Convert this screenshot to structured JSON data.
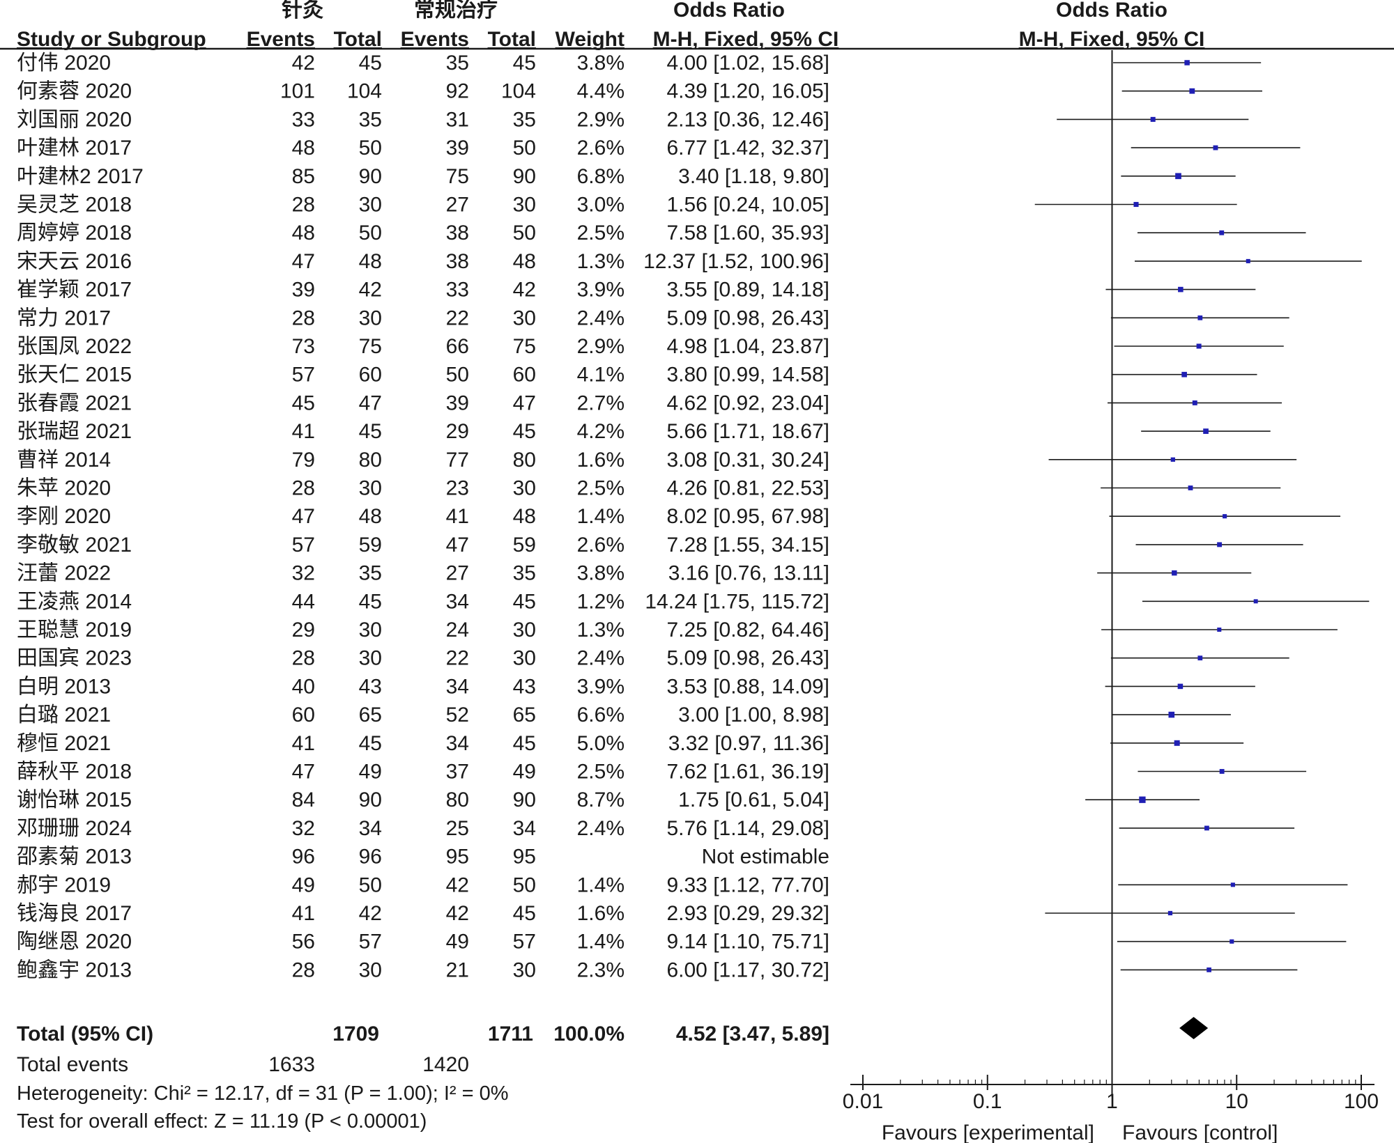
{
  "chart_data": {
    "type": "forest",
    "title": "Odds Ratio",
    "method": "M-H, Fixed, 95% CI",
    "experimental_group": "针灸",
    "control_group": "常规治疗",
    "headers": {
      "study": "Study or Subgroup",
      "events": "Events",
      "total": "Total",
      "weight": "Weight",
      "or_title": "Odds Ratio",
      "or_method": "M-H, Fixed, 95% CI"
    },
    "studies": [
      {
        "name": "付伟 2020",
        "e_events": "42",
        "e_total": "45",
        "c_events": "35",
        "c_total": "45",
        "weight": "3.8%",
        "ci_text": "4.00 [1.02, 15.68]",
        "or": 4.0,
        "lo": 1.02,
        "hi": 15.68,
        "w": 3.8
      },
      {
        "name": "何素蓉 2020",
        "e_events": "101",
        "e_total": "104",
        "c_events": "92",
        "c_total": "104",
        "weight": "4.4%",
        "ci_text": "4.39 [1.20, 16.05]",
        "or": 4.39,
        "lo": 1.2,
        "hi": 16.05,
        "w": 4.4
      },
      {
        "name": "刘国丽 2020",
        "e_events": "33",
        "e_total": "35",
        "c_events": "31",
        "c_total": "35",
        "weight": "2.9%",
        "ci_text": "2.13 [0.36, 12.46]",
        "or": 2.13,
        "lo": 0.36,
        "hi": 12.46,
        "w": 2.9
      },
      {
        "name": "叶建林 2017",
        "e_events": "48",
        "e_total": "50",
        "c_events": "39",
        "c_total": "50",
        "weight": "2.6%",
        "ci_text": "6.77 [1.42, 32.37]",
        "or": 6.77,
        "lo": 1.42,
        "hi": 32.37,
        "w": 2.6
      },
      {
        "name": "叶建林2 2017",
        "e_events": "85",
        "e_total": "90",
        "c_events": "75",
        "c_total": "90",
        "weight": "6.8%",
        "ci_text": "3.40 [1.18, 9.80]",
        "or": 3.4,
        "lo": 1.18,
        "hi": 9.8,
        "w": 6.8
      },
      {
        "name": "吴灵芝 2018",
        "e_events": "28",
        "e_total": "30",
        "c_events": "27",
        "c_total": "30",
        "weight": "3.0%",
        "ci_text": "1.56 [0.24, 10.05]",
        "or": 1.56,
        "lo": 0.24,
        "hi": 10.05,
        "w": 3.0
      },
      {
        "name": "周婷婷 2018",
        "e_events": "48",
        "e_total": "50",
        "c_events": "38",
        "c_total": "50",
        "weight": "2.5%",
        "ci_text": "7.58 [1.60, 35.93]",
        "or": 7.58,
        "lo": 1.6,
        "hi": 35.93,
        "w": 2.5
      },
      {
        "name": "宋天云 2016",
        "e_events": "47",
        "e_total": "48",
        "c_events": "38",
        "c_total": "48",
        "weight": "1.3%",
        "ci_text": "12.37 [1.52, 100.96]",
        "or": 12.37,
        "lo": 1.52,
        "hi": 100.96,
        "w": 1.3
      },
      {
        "name": "崔学颖 2017",
        "e_events": "39",
        "e_total": "42",
        "c_events": "33",
        "c_total": "42",
        "weight": "3.9%",
        "ci_text": "3.55 [0.89, 14.18]",
        "or": 3.55,
        "lo": 0.89,
        "hi": 14.18,
        "w": 3.9
      },
      {
        "name": "常力 2017",
        "e_events": "28",
        "e_total": "30",
        "c_events": "22",
        "c_total": "30",
        "weight": "2.4%",
        "ci_text": "5.09 [0.98, 26.43]",
        "or": 5.09,
        "lo": 0.98,
        "hi": 26.43,
        "w": 2.4
      },
      {
        "name": "张国凤 2022",
        "e_events": "73",
        "e_total": "75",
        "c_events": "66",
        "c_total": "75",
        "weight": "2.9%",
        "ci_text": "4.98 [1.04, 23.87]",
        "or": 4.98,
        "lo": 1.04,
        "hi": 23.87,
        "w": 2.9
      },
      {
        "name": "张天仁 2015",
        "e_events": "57",
        "e_total": "60",
        "c_events": "50",
        "c_total": "60",
        "weight": "4.1%",
        "ci_text": "3.80 [0.99, 14.58]",
        "or": 3.8,
        "lo": 0.99,
        "hi": 14.58,
        "w": 4.1
      },
      {
        "name": "张春霞 2021",
        "e_events": "45",
        "e_total": "47",
        "c_events": "39",
        "c_total": "47",
        "weight": "2.7%",
        "ci_text": "4.62 [0.92, 23.04]",
        "or": 4.62,
        "lo": 0.92,
        "hi": 23.04,
        "w": 2.7
      },
      {
        "name": "张瑞超 2021",
        "e_events": "41",
        "e_total": "45",
        "c_events": "29",
        "c_total": "45",
        "weight": "4.2%",
        "ci_text": "5.66 [1.71, 18.67]",
        "or": 5.66,
        "lo": 1.71,
        "hi": 18.67,
        "w": 4.2
      },
      {
        "name": "曹祥 2014",
        "e_events": "79",
        "e_total": "80",
        "c_events": "77",
        "c_total": "80",
        "weight": "1.6%",
        "ci_text": "3.08 [0.31, 30.24]",
        "or": 3.08,
        "lo": 0.31,
        "hi": 30.24,
        "w": 1.6
      },
      {
        "name": "朱苹 2020",
        "e_events": "28",
        "e_total": "30",
        "c_events": "23",
        "c_total": "30",
        "weight": "2.5%",
        "ci_text": "4.26 [0.81, 22.53]",
        "or": 4.26,
        "lo": 0.81,
        "hi": 22.53,
        "w": 2.5
      },
      {
        "name": "李刚 2020",
        "e_events": "47",
        "e_total": "48",
        "c_events": "41",
        "c_total": "48",
        "weight": "1.4%",
        "ci_text": "8.02 [0.95, 67.98]",
        "or": 8.02,
        "lo": 0.95,
        "hi": 67.98,
        "w": 1.4
      },
      {
        "name": "李敬敏 2021",
        "e_events": "57",
        "e_total": "59",
        "c_events": "47",
        "c_total": "59",
        "weight": "2.6%",
        "ci_text": "7.28 [1.55, 34.15]",
        "or": 7.28,
        "lo": 1.55,
        "hi": 34.15,
        "w": 2.6
      },
      {
        "name": "汪蕾 2022",
        "e_events": "32",
        "e_total": "35",
        "c_events": "27",
        "c_total": "35",
        "weight": "3.8%",
        "ci_text": "3.16 [0.76, 13.11]",
        "or": 3.16,
        "lo": 0.76,
        "hi": 13.11,
        "w": 3.8
      },
      {
        "name": "王凌燕 2014",
        "e_events": "44",
        "e_total": "45",
        "c_events": "34",
        "c_total": "45",
        "weight": "1.2%",
        "ci_text": "14.24 [1.75, 115.72]",
        "or": 14.24,
        "lo": 1.75,
        "hi": 115.72,
        "w": 1.2
      },
      {
        "name": "王聪慧 2019",
        "e_events": "29",
        "e_total": "30",
        "c_events": "24",
        "c_total": "30",
        "weight": "1.3%",
        "ci_text": "7.25 [0.82, 64.46]",
        "or": 7.25,
        "lo": 0.82,
        "hi": 64.46,
        "w": 1.3
      },
      {
        "name": "田国宾 2023",
        "e_events": "28",
        "e_total": "30",
        "c_events": "22",
        "c_total": "30",
        "weight": "2.4%",
        "ci_text": "5.09 [0.98, 26.43]",
        "or": 5.09,
        "lo": 0.98,
        "hi": 26.43,
        "w": 2.4
      },
      {
        "name": "白明 2013",
        "e_events": "40",
        "e_total": "43",
        "c_events": "34",
        "c_total": "43",
        "weight": "3.9%",
        "ci_text": "3.53 [0.88, 14.09]",
        "or": 3.53,
        "lo": 0.88,
        "hi": 14.09,
        "w": 3.9
      },
      {
        "name": "白璐 2021",
        "e_events": "60",
        "e_total": "65",
        "c_events": "52",
        "c_total": "65",
        "weight": "6.6%",
        "ci_text": "3.00 [1.00, 8.98]",
        "or": 3.0,
        "lo": 1.0,
        "hi": 8.98,
        "w": 6.6
      },
      {
        "name": "穆恒 2021",
        "e_events": "41",
        "e_total": "45",
        "c_events": "34",
        "c_total": "45",
        "weight": "5.0%",
        "ci_text": "3.32 [0.97, 11.36]",
        "or": 3.32,
        "lo": 0.97,
        "hi": 11.36,
        "w": 5.0
      },
      {
        "name": "薛秋平 2018",
        "e_events": "47",
        "e_total": "49",
        "c_events": "37",
        "c_total": "49",
        "weight": "2.5%",
        "ci_text": "7.62 [1.61, 36.19]",
        "or": 7.62,
        "lo": 1.61,
        "hi": 36.19,
        "w": 2.5
      },
      {
        "name": "谢怡琳 2015",
        "e_events": "84",
        "e_total": "90",
        "c_events": "80",
        "c_total": "90",
        "weight": "8.7%",
        "ci_text": "1.75 [0.61, 5.04]",
        "or": 1.75,
        "lo": 0.61,
        "hi": 5.04,
        "w": 8.7
      },
      {
        "name": "邓珊珊 2024",
        "e_events": "32",
        "e_total": "34",
        "c_events": "25",
        "c_total": "34",
        "weight": "2.4%",
        "ci_text": "5.76 [1.14, 29.08]",
        "or": 5.76,
        "lo": 1.14,
        "hi": 29.08,
        "w": 2.4
      },
      {
        "name": "邵素菊 2013",
        "e_events": "96",
        "e_total": "96",
        "c_events": "95",
        "c_total": "95",
        "weight": "",
        "ci_text": "Not estimable",
        "or": null,
        "lo": null,
        "hi": null,
        "w": null
      },
      {
        "name": "郝宇 2019",
        "e_events": "49",
        "e_total": "50",
        "c_events": "42",
        "c_total": "50",
        "weight": "1.4%",
        "ci_text": "9.33 [1.12, 77.70]",
        "or": 9.33,
        "lo": 1.12,
        "hi": 77.7,
        "w": 1.4
      },
      {
        "name": "钱海良 2017",
        "e_events": "41",
        "e_total": "42",
        "c_events": "42",
        "c_total": "45",
        "weight": "1.6%",
        "ci_text": "2.93 [0.29, 29.32]",
        "or": 2.93,
        "lo": 0.29,
        "hi": 29.32,
        "w": 1.6
      },
      {
        "name": "陶继恩 2020",
        "e_events": "56",
        "e_total": "57",
        "c_events": "49",
        "c_total": "57",
        "weight": "1.4%",
        "ci_text": "9.14 [1.10, 75.71]",
        "or": 9.14,
        "lo": 1.1,
        "hi": 75.71,
        "w": 1.4
      },
      {
        "name": "鲍鑫宇 2013",
        "e_events": "28",
        "e_total": "30",
        "c_events": "21",
        "c_total": "30",
        "weight": "2.3%",
        "ci_text": "6.00 [1.17, 30.72]",
        "or": 6.0,
        "lo": 1.17,
        "hi": 30.72,
        "w": 2.3
      }
    ],
    "total": {
      "label": "Total (95% CI)",
      "e_total": "1709",
      "c_total": "1711",
      "weight": "100.0%",
      "ci_text": "4.52 [3.47, 5.89]",
      "or": 4.52,
      "lo": 3.47,
      "hi": 5.89
    },
    "total_events": {
      "label": "Total events",
      "e_events": "1633",
      "c_events": "1420"
    },
    "heterogeneity": "Heterogeneity: Chi² = 12.17, df = 31 (P = 1.00); I² = 0%",
    "overall_effect": "Test for overall effect: Z = 11.19 (P < 0.00001)",
    "axis": {
      "scale": "log",
      "range": [
        0.01,
        100
      ],
      "ticks": [
        0.01,
        0.1,
        1,
        10,
        100
      ],
      "tick_labels": [
        "0.01",
        "0.1",
        "1",
        "10",
        "100"
      ],
      "left_label": "Favours [experimental]",
      "right_label": "Favours [control]"
    },
    "colors": {
      "point": "#1f1fb4",
      "line": "#1a1a1a",
      "diamond": "#000000"
    }
  }
}
